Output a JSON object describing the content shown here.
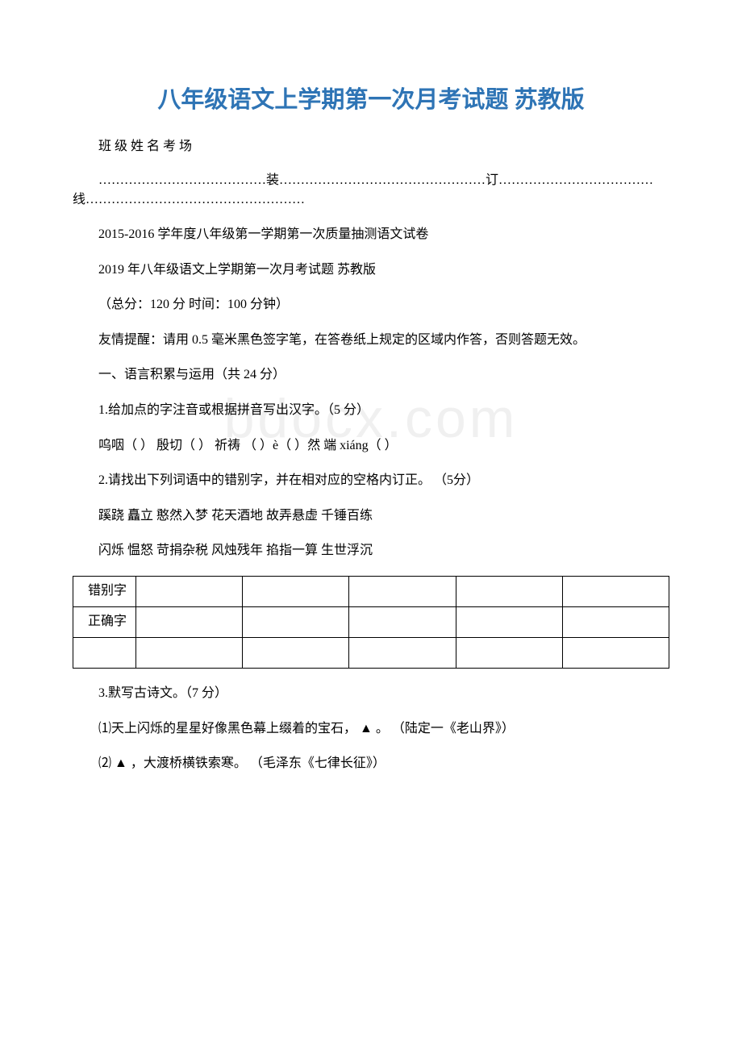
{
  "title": "八年级语文上学期第一次月考试题 苏教版",
  "meta": "班 级  姓 名  考 场",
  "divider": "…………………………………装…………………………………………订………………………………线……………………………………………",
  "lines": {
    "l1": "2015-2016 学年度八年级第一学期第一次质量抽测语文试卷",
    "l2": "2019 年八年级语文上学期第一次月考试题 苏教版",
    "l3": "（总分：120 分 时间：100 分钟）",
    "l4": "友情提醒：请用 0.5 毫米黑色签字笔，在答卷纸上规定的区域内作答，否则答题无效。",
    "l5": "一、语言积累与运用（共 24 分）",
    "l6": "1.给加点的字注音或根据拼音写出汉字。（5 分）",
    "l7": "呜咽（  ）  殷切（  ）  祈祷  （  ）è（  ）然  端 xiáng（  ）",
    "l8": "2.请找出下列词语中的错别字，并在相对应的空格内订正。 （5分）",
    "l9": "蹊跷 矗立 憨然入梦 花天酒地 故弄悬虚 千锤百练",
    "l10": "闪烁 愠怒 苛捐杂税 风烛残年 掐指一算 生世浮沉",
    "l11": "3.默写古诗文。（7 分）",
    "l12": "⑴天上闪烁的星星好像黑色幕上缀着的宝石，  ▲  。  （陆定一《老山界》）",
    "l13": "⑵ ▲ ，大渡桥横铁索寒。 （毛泽东《七律长征》）"
  },
  "table": {
    "row1_label": "错别字",
    "row2_label": "正确字"
  },
  "watermark": "bdocx.com",
  "colors": {
    "title_color": "#2e74b5",
    "text_color": "#000000",
    "background": "#ffffff",
    "watermark_color": "#f0f0f0",
    "border_color": "#000000"
  }
}
